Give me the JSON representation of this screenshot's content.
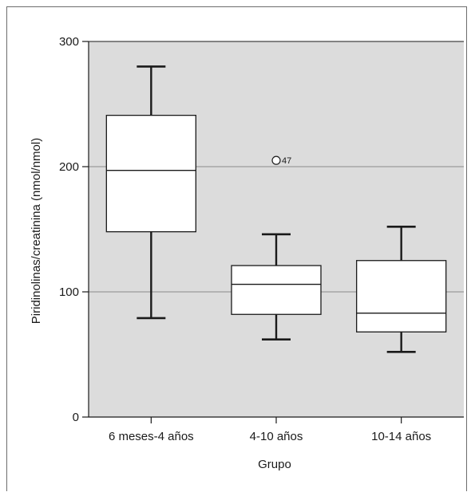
{
  "chart_data": {
    "type": "boxplot",
    "title": "",
    "xlabel": "Grupo",
    "ylabel": "Piridinolinas/creatinina (nmol/nmol)",
    "ylim": [
      0,
      300
    ],
    "yticks": [
      "0",
      "100",
      "200",
      "300"
    ],
    "grid": true,
    "categories": [
      "6 meses-4 años",
      "4-10 años",
      "10-14 años"
    ],
    "boxes": [
      {
        "min": 79,
        "q1": 148,
        "median": 197,
        "q3": 241,
        "max": 280,
        "outliers": []
      },
      {
        "min": 62,
        "q1": 82,
        "median": 106,
        "q3": 121,
        "max": 146,
        "outliers": [
          {
            "value": 205,
            "label": "47"
          }
        ]
      },
      {
        "min": 52,
        "q1": 68,
        "median": 83,
        "q3": 125,
        "max": 152,
        "outliers": []
      }
    ],
    "colors": {
      "plot_background": "#dcdcdc",
      "gridline": "#9a9a9a",
      "box_fill": "#ffffff",
      "stroke": "#1a1a1a"
    }
  }
}
